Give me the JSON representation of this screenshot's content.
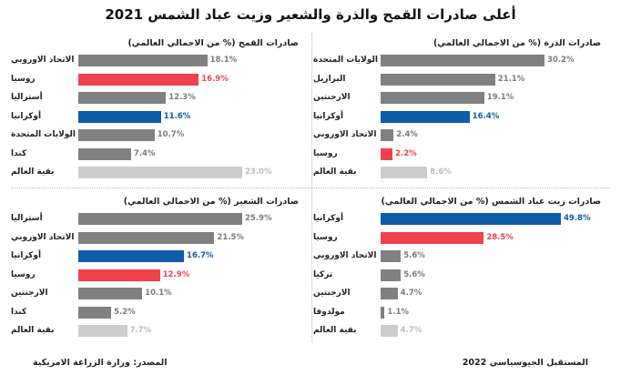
{
  "title": "أعلى صادرات القمح والذرة والشعير وزيت عباد الشمس 2021",
  "footer": {
    "source": "المصدر: وزارة الزراعة الامريكية",
    "brand": "المستقبل الجيوسياسي 2022"
  },
  "colors": {
    "default": "#808080",
    "russia": "#f0414e",
    "ukraine": "#0f5ca8",
    "rest": "#cccccc"
  },
  "chart_data": [
    {
      "type": "bar",
      "title": "صادرات القمح (% من الاجمالي العالمي)",
      "categories": [
        "الاتحاد الاوروبي",
        "روسيا",
        "أستراليا",
        "أوكرانيا",
        "الولايات المتحدة",
        "كندا",
        "بقية العالم"
      ],
      "values": [
        18.1,
        16.9,
        12.3,
        11.6,
        10.7,
        7.4,
        23.0
      ],
      "labels": [
        "18.1%",
        "16.9%",
        "12.3%",
        "11.6%",
        "10.7%",
        "7.4%",
        "23.0%"
      ],
      "highlight": [
        "default",
        "russia",
        "default",
        "ukraine",
        "default",
        "default",
        "rest"
      ]
    },
    {
      "type": "bar",
      "title": "صادرات الذرة (% من الاجمالي العالمي)",
      "categories": [
        "الولايات المتحدة",
        "البرازيل",
        "الارجنتين",
        "أوكرانيا",
        "الاتحاد الاوروبي",
        "روسيا",
        "بقية العالم"
      ],
      "values": [
        30.2,
        21.1,
        19.1,
        16.4,
        2.4,
        2.2,
        8.6
      ],
      "labels": [
        "30.2%",
        "21.1%",
        "19.1%",
        "16.4%",
        "2.4%",
        "2.2%",
        "8.6%"
      ],
      "highlight": [
        "default",
        "default",
        "default",
        "ukraine",
        "default",
        "russia",
        "rest"
      ]
    },
    {
      "type": "bar",
      "title": "صادرات الشعير (% من الاجمالي العالمي)",
      "categories": [
        "أستراليا",
        "الاتحاد الاوروبي",
        "أوكرانيا",
        "روسيا",
        "الارجنتين",
        "كندا",
        "بقية العالم"
      ],
      "values": [
        25.9,
        21.5,
        16.7,
        12.9,
        10.1,
        5.2,
        7.7
      ],
      "labels": [
        "25.9%",
        "21.5%",
        "16.7%",
        "12.9%",
        "10.1%",
        "5.2%",
        "7.7%"
      ],
      "highlight": [
        "default",
        "default",
        "ukraine",
        "russia",
        "default",
        "default",
        "rest"
      ]
    },
    {
      "type": "bar",
      "title": "صادرات زيت عباد الشمس (% من الاجمالي العالمي)",
      "categories": [
        "أوكرانيا",
        "روسيا",
        "الاتحاد الاوروبي",
        "تركيا",
        "الارجنتين",
        "مولدوفا",
        "بقية العالم"
      ],
      "values": [
        49.8,
        28.5,
        5.6,
        5.6,
        4.7,
        1.1,
        4.7
      ],
      "labels": [
        "49.8%",
        "28.5%",
        "5.6%",
        "5.6%",
        "4.7%",
        "1.1%",
        "4.7%"
      ],
      "highlight": [
        "ukraine",
        "russia",
        "default",
        "default",
        "default",
        "default",
        "rest"
      ]
    }
  ]
}
